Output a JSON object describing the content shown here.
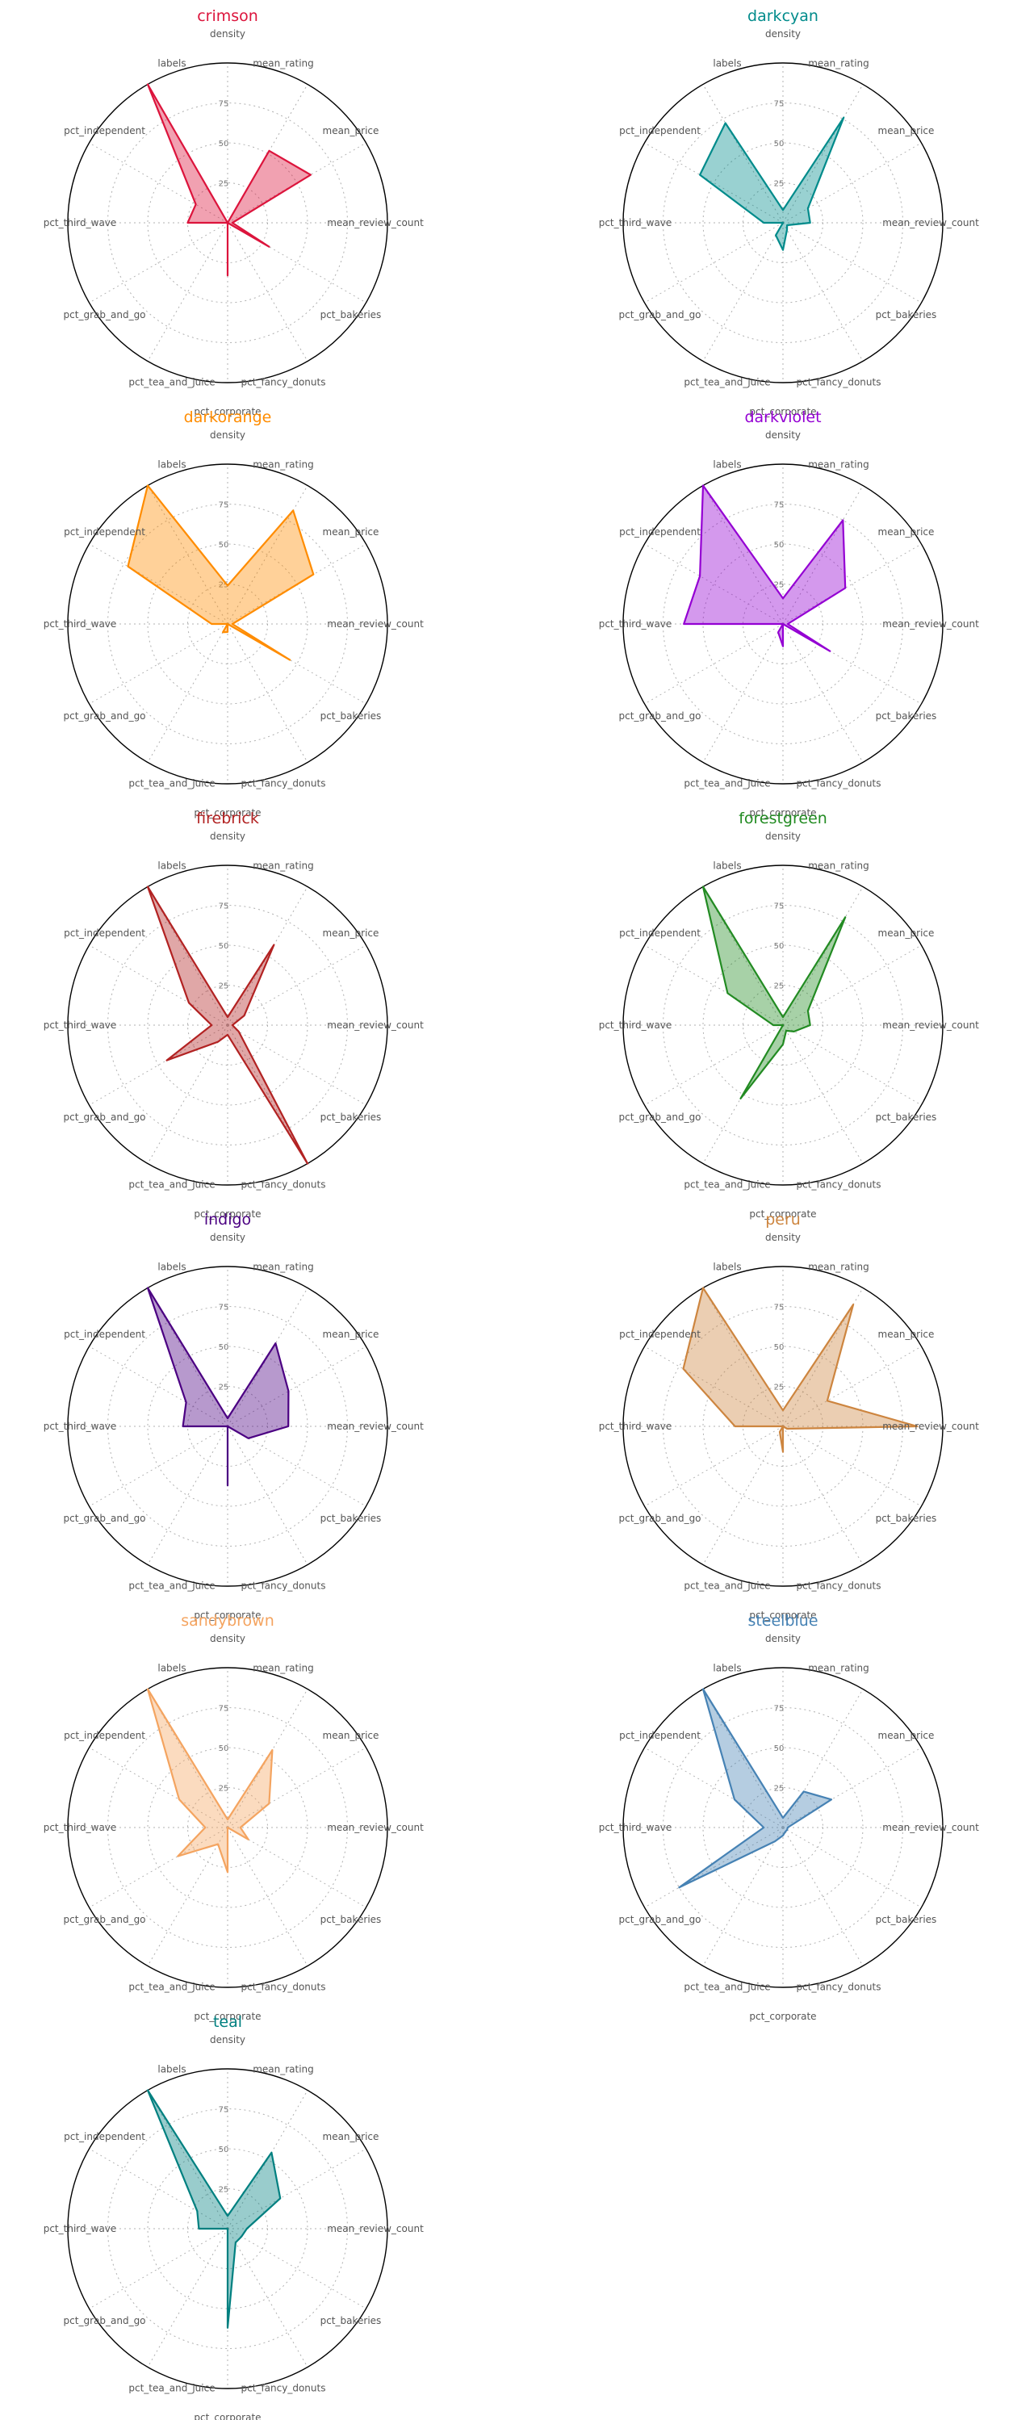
{
  "chart_data": [
    {
      "type": "radar",
      "title": "crimson",
      "color": "#dc143c",
      "rlim": [
        0,
        100
      ],
      "ticks": [
        "25",
        "50",
        "75"
      ],
      "grid": true,
      "axes": [
        "density",
        "mean_rating",
        "mean_price",
        "mean_review_count",
        "pct_bakeries",
        "pct_fancy_donuts",
        "pct_corporate",
        "pct_tea_and_juice",
        "pct_grab_and_go",
        "pct_third_wave",
        "pct_independent",
        "labels"
      ],
      "values": [
        0,
        52,
        60,
        3,
        30,
        0,
        33,
        0,
        0,
        25,
        23,
        100
      ]
    },
    {
      "type": "radar",
      "title": "darkcyan",
      "color": "#008b8b",
      "rlim": [
        0,
        100
      ],
      "ticks": [
        "25",
        "50",
        "75"
      ],
      "grid": true,
      "axes": [
        "density",
        "mean_rating",
        "mean_price",
        "mean_review_count",
        "pct_bakeries",
        "pct_fancy_donuts",
        "pct_corporate",
        "pct_tea_and_juice",
        "pct_grab_and_go",
        "pct_third_wave",
        "pct_independent",
        "labels"
      ],
      "values": [
        8,
        76,
        18,
        17,
        3,
        5,
        17,
        9,
        0,
        12,
        60,
        72
      ]
    },
    {
      "type": "radar",
      "title": "darkorange",
      "color": "#ff8c00",
      "rlim": [
        0,
        100
      ],
      "ticks": [
        "25",
        "50",
        "75"
      ],
      "grid": true,
      "axes": [
        "density",
        "mean_rating",
        "mean_price",
        "mean_review_count",
        "pct_bakeries",
        "pct_fancy_donuts",
        "pct_corporate",
        "pct_tea_and_juice",
        "pct_grab_and_go",
        "pct_third_wave",
        "pct_independent",
        "labels"
      ],
      "values": [
        24,
        82,
        62,
        3,
        45,
        0,
        5,
        6,
        0,
        10,
        72,
        100
      ]
    },
    {
      "type": "radar",
      "title": "darkviolet",
      "color": "#9400d3",
      "rlim": [
        0,
        100
      ],
      "ticks": [
        "25",
        "50",
        "75"
      ],
      "grid": true,
      "axes": [
        "density",
        "mean_rating",
        "mean_price",
        "mean_review_count",
        "pct_bakeries",
        "pct_fancy_donuts",
        "pct_corporate",
        "pct_tea_and_juice",
        "pct_grab_and_go",
        "pct_third_wave",
        "pct_independent",
        "labels"
      ],
      "values": [
        16,
        75,
        45,
        3,
        34,
        0,
        14,
        6,
        0,
        62,
        60,
        100
      ]
    },
    {
      "type": "radar",
      "title": "firebrick",
      "color": "#b22222",
      "rlim": [
        0,
        100
      ],
      "ticks": [
        "25",
        "50",
        "75"
      ],
      "grid": true,
      "axes": [
        "density",
        "mean_rating",
        "mean_price",
        "mean_review_count",
        "pct_bakeries",
        "pct_fancy_donuts",
        "pct_corporate",
        "pct_tea_and_juice",
        "pct_grab_and_go",
        "pct_third_wave",
        "pct_independent",
        "labels"
      ],
      "values": [
        5,
        58,
        12,
        3,
        8,
        100,
        6,
        12,
        44,
        10,
        28,
        100
      ]
    },
    {
      "type": "radar",
      "title": "forestgreen",
      "color": "#228b22",
      "rlim": [
        0,
        100
      ],
      "ticks": [
        "25",
        "50",
        "75"
      ],
      "grid": true,
      "axes": [
        "density",
        "mean_rating",
        "mean_price",
        "mean_review_count",
        "pct_bakeries",
        "pct_fancy_donuts",
        "pct_corporate",
        "pct_tea_and_juice",
        "pct_grab_and_go",
        "pct_third_wave",
        "pct_independent",
        "labels"
      ],
      "values": [
        5,
        78,
        18,
        17,
        8,
        4,
        12,
        53,
        0,
        6,
        40,
        100
      ]
    },
    {
      "type": "radar",
      "title": "indigo",
      "color": "#4b0082",
      "rlim": [
        0,
        100
      ],
      "ticks": [
        "25",
        "50",
        "75"
      ],
      "grid": true,
      "axes": [
        "density",
        "mean_rating",
        "mean_price",
        "mean_review_count",
        "pct_bakeries",
        "pct_fancy_donuts",
        "pct_corporate",
        "pct_tea_and_juice",
        "pct_grab_and_go",
        "pct_third_wave",
        "pct_independent",
        "labels"
      ],
      "values": [
        5,
        60,
        44,
        38,
        15,
        0,
        37,
        0,
        0,
        28,
        30,
        100
      ]
    },
    {
      "type": "radar",
      "title": "peru",
      "color": "#cd853f",
      "rlim": [
        0,
        100
      ],
      "ticks": [
        "25",
        "50",
        "75"
      ],
      "grid": true,
      "axes": [
        "density",
        "mean_rating",
        "mean_price",
        "mean_review_count",
        "pct_bakeries",
        "pct_fancy_donuts",
        "pct_corporate",
        "pct_tea_and_juice",
        "pct_grab_and_go",
        "pct_third_wave",
        "pct_independent",
        "labels"
      ],
      "values": [
        10,
        88,
        32,
        84,
        3,
        0,
        16,
        4,
        0,
        30,
        72,
        100
      ]
    },
    {
      "type": "radar",
      "title": "sandybrown",
      "color": "#f4a460",
      "rlim": [
        0,
        100
      ],
      "ticks": [
        "25",
        "50",
        "75"
      ],
      "grid": true,
      "axes": [
        "density",
        "mean_rating",
        "mean_price",
        "mean_review_count",
        "pct_bakeries",
        "pct_fancy_donuts",
        "pct_corporate",
        "pct_tea_and_juice",
        "pct_grab_and_go",
        "pct_third_wave",
        "pct_independent",
        "labels"
      ],
      "values": [
        5,
        56,
        30,
        8,
        15,
        0,
        28,
        12,
        36,
        14,
        35,
        100
      ]
    },
    {
      "type": "radar",
      "title": "steelblue",
      "color": "#4682b4",
      "rlim": [
        0,
        100
      ],
      "ticks": [
        "25",
        "50",
        "75"
      ],
      "grid": true,
      "axes": [
        "density",
        "mean_rating",
        "mean_price",
        "mean_review_count",
        "pct_bakeries",
        "pct_fancy_donuts",
        "pct_corporate",
        "pct_tea_and_juice",
        "pct_grab_and_go",
        "pct_third_wave",
        "pct_independent",
        "labels"
      ],
      "values": [
        6,
        26,
        35,
        3,
        3,
        3,
        5,
        10,
        75,
        12,
        35,
        100
      ]
    },
    {
      "type": "radar",
      "title": "teal",
      "color": "#008080",
      "rlim": [
        0,
        100
      ],
      "ticks": [
        "25",
        "50",
        "75"
      ],
      "grid": true,
      "axes": [
        "density",
        "mean_rating",
        "mean_price",
        "mean_review_count",
        "pct_bakeries",
        "pct_fancy_donuts",
        "pct_corporate",
        "pct_tea_and_juice",
        "pct_grab_and_go",
        "pct_third_wave",
        "pct_independent",
        "labels"
      ],
      "values": [
        8,
        55,
        38,
        12,
        10,
        10,
        62,
        0,
        0,
        18,
        22,
        100
      ]
    }
  ]
}
